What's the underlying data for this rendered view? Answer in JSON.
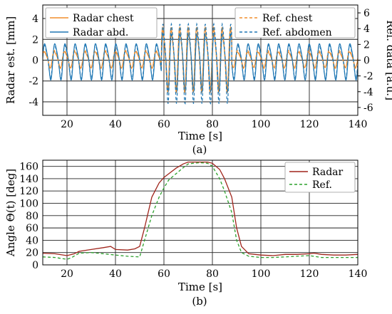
{
  "chart_data": [
    {
      "type": "line",
      "panel_label": "(a)",
      "xlabel": "Time [s]",
      "ylabel": "Radar est. [mm]",
      "ylabel_right": "Ref. data [a.u.]",
      "xlim": [
        10,
        140
      ],
      "ylim": [
        -5.3,
        5.3
      ],
      "ylim_right": [
        -7,
        7
      ],
      "x_ticks": [
        20,
        40,
        60,
        80,
        100,
        120,
        140
      ],
      "y_ticks": [
        -4,
        -2,
        0,
        2,
        4
      ],
      "y_ticks_right": [
        -6,
        -4,
        -2,
        0,
        2,
        4,
        6
      ],
      "grid": true,
      "legend_left": "top-left",
      "legend_right": "top-right",
      "series": [
        {
          "name": "Radar chest",
          "axis": "left",
          "color": "#f28e2b",
          "dash": "solid",
          "segments": [
            {
              "x0": 10,
              "x1": 59,
              "period": 4.2,
              "amp": 0.9,
              "offset": 0.1,
              "phase": 0.3
            },
            {
              "x0": 59,
              "x1": 88,
              "period": 3.5,
              "amp": 3.6,
              "offset": 0.3,
              "phase": 0.3
            },
            {
              "x0": 88,
              "x1": 140,
              "period": 4.2,
              "amp": 0.85,
              "offset": 0.1,
              "phase": 0.3
            }
          ]
        },
        {
          "name": "Radar abd.",
          "axis": "left",
          "color": "#1f77b4",
          "dash": "solid",
          "segments": [
            {
              "x0": 10,
              "x1": 59,
              "period": 4.2,
              "amp": 2.0,
              "offset": 0.0,
              "phase": 0.0
            },
            {
              "x0": 59,
              "x1": 88,
              "period": 3.5,
              "amp": 3.2,
              "offset": 0.0,
              "phase": 0.0
            },
            {
              "x0": 88,
              "x1": 140,
              "period": 4.2,
              "amp": 2.0,
              "offset": 0.0,
              "phase": 0.0
            }
          ]
        },
        {
          "name": "Ref. chest",
          "axis": "right",
          "color": "#f28e2b",
          "dash": "4,3",
          "segments": [
            {
              "x0": 10,
              "x1": 59,
              "period": 4.2,
              "amp": 1.3,
              "offset": 0.2,
              "phase": 0.35
            },
            {
              "x0": 59,
              "x1": 88,
              "period": 3.5,
              "amp": 4.5,
              "offset": 0.3,
              "phase": 0.35
            },
            {
              "x0": 88,
              "x1": 140,
              "period": 4.2,
              "amp": 1.3,
              "offset": 0.2,
              "phase": 0.35
            }
          ]
        },
        {
          "name": "Ref. abdomen",
          "axis": "right",
          "color": "#1f77b4",
          "dash": "4,3",
          "segments": [
            {
              "x0": 10,
              "x1": 59,
              "period": 4.2,
              "amp": 2.4,
              "offset": 0.0,
              "phase": 0.1
            },
            {
              "x0": 59,
              "x1": 88,
              "period": 3.5,
              "amp": 5.8,
              "offset": 0.0,
              "phase": 0.1
            },
            {
              "x0": 88,
              "x1": 140,
              "period": 4.2,
              "amp": 2.4,
              "offset": 0.0,
              "phase": 0.1
            }
          ]
        }
      ]
    },
    {
      "type": "line",
      "panel_label": "(b)",
      "xlabel": "Time [s]",
      "ylabel": "Angle Θ(t) [deg]",
      "xlim": [
        10,
        140
      ],
      "ylim": [
        0,
        170
      ],
      "x_ticks": [
        20,
        40,
        60,
        80,
        100,
        120,
        140
      ],
      "y_ticks": [
        0,
        20,
        40,
        60,
        80,
        100,
        120,
        140,
        160
      ],
      "grid": true,
      "legend": "top-right",
      "series": [
        {
          "name": "Radar",
          "color": "#a0251c",
          "dash": "solid",
          "x": [
            10,
            15,
            20,
            23,
            25,
            30,
            35,
            38,
            40,
            45,
            48,
            50,
            52,
            55,
            58,
            60,
            62,
            65,
            68,
            70,
            72,
            75,
            78,
            80,
            83,
            85,
            88,
            90,
            92,
            95,
            100,
            105,
            110,
            115,
            120,
            122,
            125,
            130,
            135,
            140
          ],
          "y": [
            19,
            18,
            15,
            18,
            22,
            25,
            28,
            30,
            25,
            24,
            26,
            30,
            60,
            110,
            133,
            142,
            148,
            157,
            164,
            167,
            167,
            167,
            167,
            165,
            155,
            140,
            110,
            60,
            30,
            18,
            16,
            15,
            17,
            17,
            18,
            19,
            17,
            16,
            16,
            17
          ]
        },
        {
          "name": "Ref.",
          "color": "#2ca02c",
          "dash": "4,3",
          "x": [
            10,
            15,
            20,
            22,
            25,
            30,
            35,
            40,
            45,
            50,
            52,
            55,
            58,
            60,
            62,
            65,
            68,
            70,
            72,
            75,
            78,
            80,
            83,
            85,
            88,
            90,
            92,
            95,
            100,
            105,
            110,
            115,
            120,
            125,
            130,
            135,
            140
          ],
          "y": [
            13,
            12,
            9,
            12,
            19,
            20,
            18,
            16,
            14,
            13,
            40,
            80,
            110,
            125,
            138,
            148,
            158,
            164,
            165,
            166,
            165,
            160,
            140,
            120,
            85,
            40,
            20,
            14,
            12,
            12,
            13,
            14,
            15,
            12,
            12,
            12,
            12
          ]
        }
      ]
    }
  ]
}
